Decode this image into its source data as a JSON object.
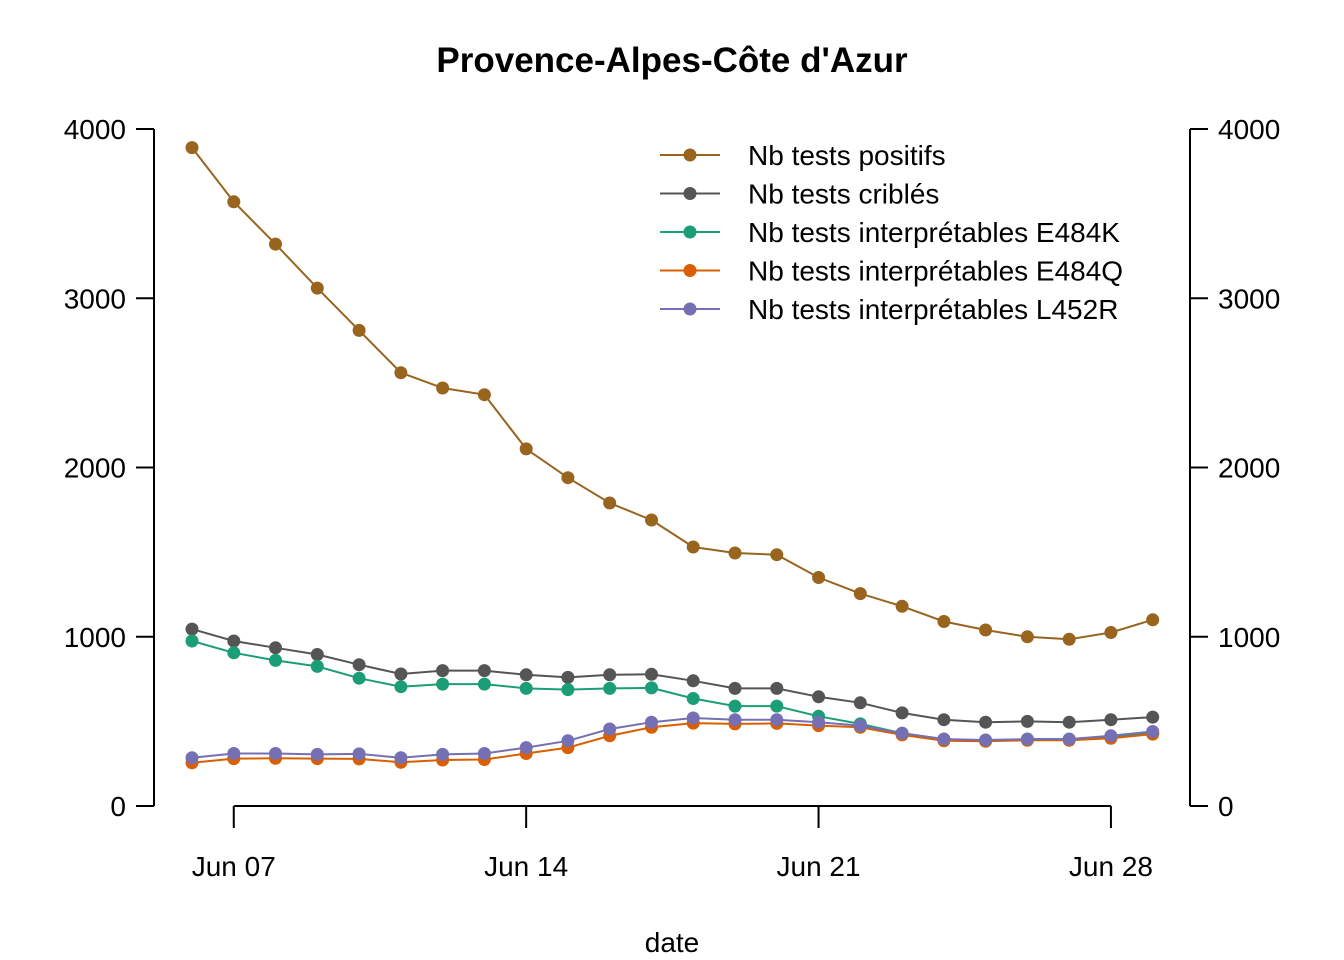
{
  "chart_data": {
    "type": "line",
    "title": "Provence-Alpes-Côte d'Azur",
    "xlabel": "date",
    "ylabel": "",
    "x": [
      "2021-06-06",
      "2021-06-07",
      "2021-06-08",
      "2021-06-09",
      "2021-06-10",
      "2021-06-11",
      "2021-06-12",
      "2021-06-13",
      "2021-06-14",
      "2021-06-15",
      "2021-06-16",
      "2021-06-17",
      "2021-06-18",
      "2021-06-19",
      "2021-06-20",
      "2021-06-21",
      "2021-06-22",
      "2021-06-23",
      "2021-06-24",
      "2021-06-25",
      "2021-06-26",
      "2021-06-27",
      "2021-06-28",
      "2021-06-29"
    ],
    "x_ticks": [
      {
        "date": "2021-06-07",
        "label": "Jun 07"
      },
      {
        "date": "2021-06-14",
        "label": "Jun 14"
      },
      {
        "date": "2021-06-21",
        "label": "Jun 21"
      },
      {
        "date": "2021-06-28",
        "label": "Jun 28"
      }
    ],
    "ylim": [
      0,
      4000
    ],
    "y_ticks": [
      0,
      1000,
      2000,
      3000,
      4000
    ],
    "y_tick_labels": [
      "0",
      "1000",
      "2000",
      "3000",
      "4000"
    ],
    "right_axis": true,
    "grid": false,
    "legend_position": "top-right",
    "series": [
      {
        "name": "Nb tests positifs",
        "color": "#98641e",
        "values": [
          3890,
          3570,
          3320,
          3060,
          2810,
          2560,
          2470,
          2430,
          2110,
          1940,
          1790,
          1690,
          1530,
          1495,
          1485,
          1350,
          1255,
          1180,
          1090,
          1040,
          1000,
          985,
          1025,
          1100
        ]
      },
      {
        "name": "Nb tests criblés",
        "color": "#555555",
        "values": [
          1045,
          975,
          935,
          895,
          835,
          780,
          800,
          800,
          775,
          760,
          775,
          778,
          740,
          695,
          695,
          645,
          610,
          550,
          510,
          495,
          500,
          495,
          510,
          525
        ]
      },
      {
        "name": "Nb tests interprétables E484K",
        "color": "#1b9e77",
        "values": [
          975,
          905,
          860,
          825,
          755,
          705,
          720,
          720,
          695,
          688,
          695,
          698,
          635,
          590,
          590,
          530,
          485,
          430,
          395,
          385,
          395,
          395,
          410,
          430
        ]
      },
      {
        "name": "Nb tests interprétables E484Q",
        "color": "#d95f02",
        "values": [
          255,
          280,
          282,
          280,
          278,
          258,
          272,
          275,
          310,
          345,
          415,
          465,
          490,
          485,
          488,
          475,
          465,
          420,
          385,
          382,
          388,
          388,
          400,
          425
        ]
      },
      {
        "name": "Nb tests interprétables L452R",
        "color": "#7570b3",
        "values": [
          285,
          310,
          310,
          305,
          308,
          285,
          305,
          310,
          345,
          385,
          455,
          495,
          520,
          510,
          510,
          495,
          475,
          430,
          395,
          390,
          395,
          395,
          415,
          440
        ]
      }
    ]
  }
}
